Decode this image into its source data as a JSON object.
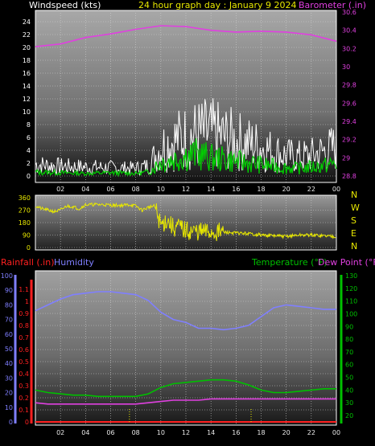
{
  "header": {
    "windspeed_label": "Windspeed (kts)",
    "title": "24 hour graph day : January 9 2024",
    "barometer_label": "Barometer (.in)"
  },
  "lower_header": {
    "rainfall_label": "Rainfall (.in)",
    "humidity_label": "Humidity",
    "temperature_label": "Temperature (°F)",
    "dewpoint_label": "Dew Point (°F)"
  },
  "colors": {
    "barometer": "#e040e0",
    "wind_avg": "#ffffff",
    "wind_gust": "#00d000",
    "direction": "#e8e800",
    "rain": "#ff2020",
    "humidity": "#7f7fff",
    "temperature": "#00c000",
    "dewpoint": "#e040e0",
    "grid": "#cccccc"
  },
  "chart_data": [
    {
      "type": "line",
      "panel": "wind-barometer",
      "x_ticks": [
        "02",
        "04",
        "06",
        "08",
        "10",
        "12",
        "14",
        "16",
        "18",
        "20",
        "22",
        "00"
      ],
      "y_left_ticks": [
        "0",
        "2",
        "4",
        "6",
        "8",
        "10",
        "12",
        "14",
        "16",
        "18",
        "20",
        "22",
        "24"
      ],
      "y_left_range": [
        0,
        25
      ],
      "y_right_ticks": [
        "28.8",
        "29",
        "29.2",
        "29.4",
        "29.6",
        "29.8",
        "30",
        "30.2",
        "30.4",
        "30.6"
      ],
      "y_right_range": [
        28.8,
        30.6
      ],
      "x_range": [
        0,
        24
      ],
      "series": [
        {
          "key": "barometer",
          "axis": "right",
          "x": [
            0,
            2,
            4,
            6,
            8,
            10,
            12,
            14,
            16,
            18,
            20,
            22,
            24
          ],
          "values": [
            30.22,
            30.25,
            30.32,
            30.36,
            30.41,
            30.45,
            30.44,
            30.4,
            30.38,
            30.39,
            30.38,
            30.35,
            30.28
          ]
        },
        {
          "key": "wind_avg",
          "axis": "left",
          "x": [
            0,
            2,
            4,
            6,
            8,
            9,
            10,
            11,
            12,
            13,
            14,
            15,
            16,
            17,
            18,
            19,
            20,
            21,
            22,
            23,
            24
          ],
          "values": [
            1.8,
            1.5,
            1.4,
            1.3,
            1.2,
            1.6,
            4.5,
            5.5,
            6,
            6.5,
            6.5,
            6,
            5.5,
            5,
            4.5,
            3.8,
            3.2,
            3,
            3.2,
            3.8,
            4.5
          ]
        },
        {
          "key": "wind_gust",
          "axis": "left",
          "x": [
            0,
            2,
            4,
            6,
            8,
            9,
            10,
            11,
            12,
            13,
            14,
            15,
            16,
            17,
            18,
            19,
            20,
            21,
            22,
            23,
            24
          ],
          "values": [
            0.6,
            0.5,
            0.4,
            0.5,
            0.4,
            0.6,
            2.2,
            2.6,
            3.2,
            3.4,
            2.8,
            2.6,
            2.3,
            2.0,
            1.8,
            1.5,
            1.3,
            1.2,
            1.4,
            1.6,
            2.0
          ]
        }
      ]
    },
    {
      "type": "line",
      "panel": "wind-direction",
      "y_ticks": [
        "0",
        "90",
        "180",
        "270",
        "360"
      ],
      "y_range": [
        0,
        360
      ],
      "compass": [
        "N",
        "W",
        "S",
        "E",
        "N"
      ],
      "x_range": [
        0,
        24
      ],
      "series": [
        {
          "key": "direction",
          "x": [
            0,
            0.5,
            1,
            1.5,
            2,
            2.5,
            3,
            3.5,
            4,
            4.5,
            5,
            5.5,
            6,
            6.5,
            7,
            7.5,
            8,
            8.5,
            9,
            9.5,
            10,
            10.5,
            11,
            11.5,
            12,
            13,
            14,
            15,
            16,
            17,
            18,
            19,
            20,
            21,
            22,
            23,
            24
          ],
          "values": [
            300,
            280,
            270,
            260,
            270,
            300,
            295,
            280,
            310,
            310,
            310,
            310,
            305,
            305,
            305,
            310,
            300,
            270,
            290,
            300,
            160,
            200,
            140,
            150,
            120,
            115,
            110,
            110,
            105,
            100,
            90,
            85,
            80,
            90,
            90,
            85,
            80
          ]
        }
      ]
    },
    {
      "type": "line",
      "panel": "rain-humidity-temperature",
      "x_range": [
        0,
        24
      ],
      "y_left_ticks": [
        "0",
        "0.1",
        "0.2",
        "0.3",
        "0.4",
        "0.5",
        "0.6",
        "0.7",
        "0.8",
        "0.9",
        "1",
        "1.1"
      ],
      "y_left_range": [
        0,
        1.2
      ],
      "y_hum_ticks": [
        "0",
        "10",
        "20",
        "30",
        "40",
        "50",
        "60",
        "70",
        "80",
        "90",
        "100"
      ],
      "y_hum_range": [
        0,
        100
      ],
      "y_right_ticks": [
        "20",
        "30",
        "40",
        "50",
        "60",
        "70",
        "80",
        "90",
        "100",
        "110",
        "120",
        "130"
      ],
      "y_right_range": [
        20,
        130
      ],
      "series": [
        {
          "key": "humidity",
          "axis": "humidity",
          "x": [
            0,
            1,
            2,
            3,
            4,
            5,
            6,
            7,
            8,
            9,
            10,
            11,
            12,
            13,
            14,
            15,
            16,
            17,
            18,
            19,
            20,
            21,
            22,
            23,
            24
          ],
          "values": [
            76,
            80,
            84,
            87,
            88,
            89,
            89,
            88,
            87,
            83,
            75,
            70,
            68,
            64,
            64,
            63,
            64,
            66,
            72,
            78,
            80,
            79,
            78,
            77,
            77
          ]
        },
        {
          "key": "temperature",
          "axis": "right",
          "x": [
            0,
            1,
            2,
            3,
            4,
            5,
            6,
            7,
            8,
            9,
            10,
            11,
            12,
            13,
            14,
            15,
            16,
            17,
            18,
            19,
            20,
            21,
            22,
            23,
            24
          ],
          "values": [
            40,
            38,
            37,
            36,
            36,
            35,
            35,
            35,
            35,
            37,
            42,
            45,
            46,
            47,
            48,
            48,
            47,
            44,
            40,
            38,
            38,
            39,
            40,
            41,
            41
          ]
        },
        {
          "key": "dewpoint",
          "axis": "right",
          "x": [
            0,
            1,
            2,
            3,
            4,
            5,
            6,
            7,
            8,
            9,
            10,
            11,
            12,
            13,
            14,
            15,
            16,
            17,
            18,
            19,
            20,
            21,
            22,
            23,
            24
          ],
          "values": [
            30,
            29,
            29,
            29,
            29,
            29,
            29,
            29,
            29,
            30,
            31,
            32,
            32,
            32,
            33,
            33,
            33,
            33,
            33,
            33,
            33,
            33,
            33,
            33,
            33
          ]
        },
        {
          "key": "rain",
          "axis": "left",
          "x": [
            0,
            24
          ],
          "values": [
            0,
            0
          ]
        }
      ]
    }
  ],
  "x_tick_labels": [
    "02",
    "04",
    "06",
    "08",
    "10",
    "12",
    "14",
    "16",
    "18",
    "20",
    "22",
    "00"
  ]
}
